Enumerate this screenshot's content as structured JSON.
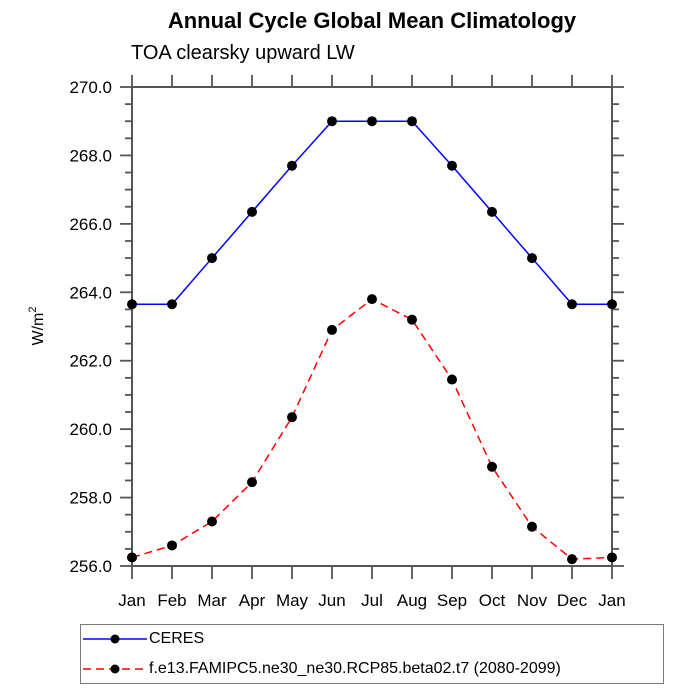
{
  "chart_data": {
    "type": "line",
    "title": "Annual Cycle Global Mean Climatology",
    "subtitle": "TOA clearsky upward LW",
    "ylabel": {
      "base": "W/m",
      "sup": "2"
    },
    "categories": [
      "Jan",
      "Feb",
      "Mar",
      "Apr",
      "May",
      "Jun",
      "Jul",
      "Aug",
      "Sep",
      "Oct",
      "Nov",
      "Dec",
      "Jan"
    ],
    "ylim": [
      256.0,
      270.0
    ],
    "ytick_major": 2.0,
    "ytick_minor": 0.5,
    "grid": false,
    "legend_position": "bottom-left",
    "colors": {
      "frame": "#555555",
      "tick": "#555555",
      "text": "#000000",
      "marker": "#000000",
      "legend_border": "#7a7a7a"
    },
    "series": [
      {
        "name": "CERES",
        "color": "#0000ff",
        "style": "solid",
        "values": [
          263.65,
          263.65,
          265.0,
          266.35,
          267.7,
          269.0,
          269.0,
          269.0,
          267.7,
          266.35,
          265.0,
          263.65,
          263.65
        ]
      },
      {
        "name": "f.e13.FAMIPC5.ne30_ne30.RCP85.beta02.t7 (2080-2099)",
        "color": "#ff0000",
        "style": "dashed",
        "values": [
          256.25,
          256.6,
          257.3,
          258.45,
          260.35,
          262.9,
          263.8,
          263.2,
          261.45,
          258.9,
          257.15,
          256.2,
          256.25
        ]
      }
    ]
  }
}
